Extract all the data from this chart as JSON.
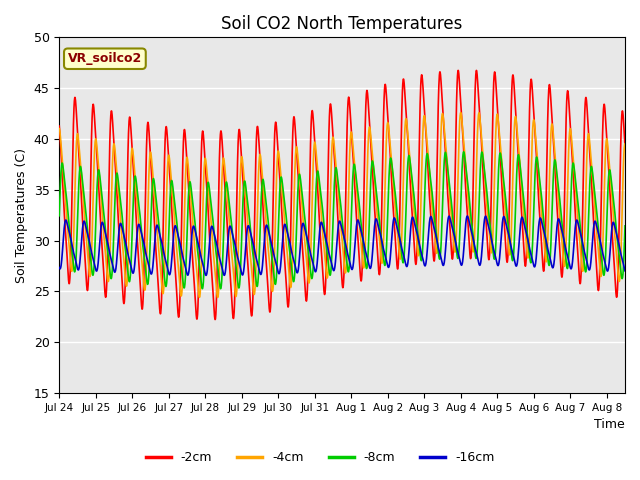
{
  "title": "Soil CO2 North Temperatures",
  "ylabel": "Soil Temperatures (C)",
  "xlabel": "Time",
  "annotation": "VR_soilco2",
  "ylim": [
    15,
    50
  ],
  "background_color": "#e8e8e8",
  "colors": {
    "-2cm": "#ff0000",
    "-4cm": "#ffa500",
    "-8cm": "#00cc00",
    "-16cm": "#0000cc"
  },
  "legend_labels": [
    "-2cm",
    "-4cm",
    "-8cm",
    "-16cm"
  ],
  "x_tick_labels": [
    "Jul 24",
    "Jul 25",
    "Jul 26",
    "Jul 27",
    "Jul 28",
    "Jul 29",
    "Jul 30",
    "Jul 31",
    "Aug 1",
    "Aug 2",
    "Aug 3",
    "Aug 4",
    "Aug 5",
    "Aug 6",
    "Aug 7",
    "Aug 8"
  ],
  "ytick_labels": [
    "15",
    "20",
    "25",
    "30",
    "35",
    "40",
    "45",
    "50"
  ],
  "xlim": [
    0,
    15.5
  ]
}
